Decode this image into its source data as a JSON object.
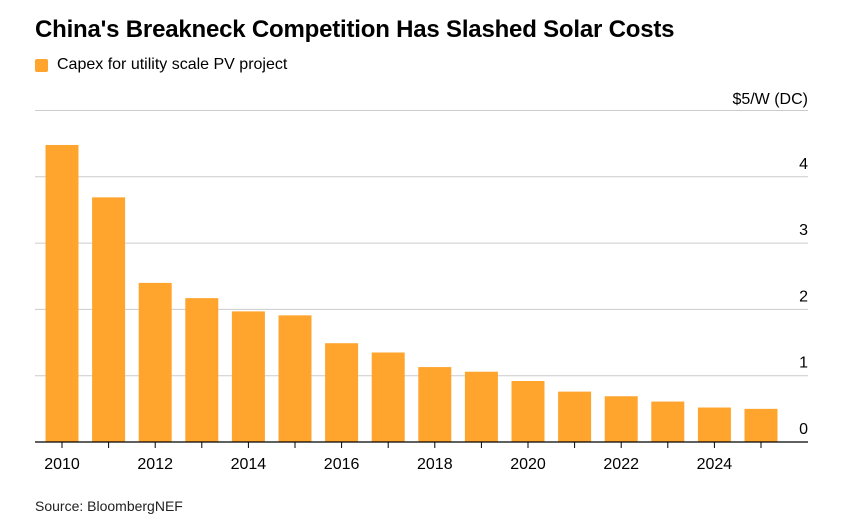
{
  "title": "China's Breakneck Competition Has Slashed Solar Costs",
  "source": "Source: BloombergNEF",
  "colors": {
    "bar": "#FFA42D",
    "grid": "#CCCCCC",
    "axis": "#000000"
  },
  "chart_data": {
    "type": "bar",
    "title": "China's Breakneck Competition Has Slashed Solar Costs",
    "ylabel": "$5/W (DC)",
    "xlabel": "",
    "y_axis_position": "right",
    "grid": true,
    "legend_position": "top-left",
    "ylim": [
      0,
      5
    ],
    "yticks": [
      0,
      1,
      2,
      3,
      4
    ],
    "categories": [
      2010,
      2011,
      2012,
      2013,
      2014,
      2015,
      2016,
      2017,
      2018,
      2019,
      2020,
      2021,
      2022,
      2023,
      2024,
      2025
    ],
    "xtick_labels": [
      "2010",
      "2012",
      "2014",
      "2016",
      "2018",
      "2020",
      "2022",
      "2024"
    ],
    "series": [
      {
        "name": "Capex for utility scale PV project",
        "values": [
          4.48,
          3.69,
          2.4,
          2.17,
          1.97,
          1.91,
          1.49,
          1.35,
          1.13,
          1.06,
          0.92,
          0.76,
          0.69,
          0.61,
          0.52,
          0.5
        ]
      }
    ]
  }
}
